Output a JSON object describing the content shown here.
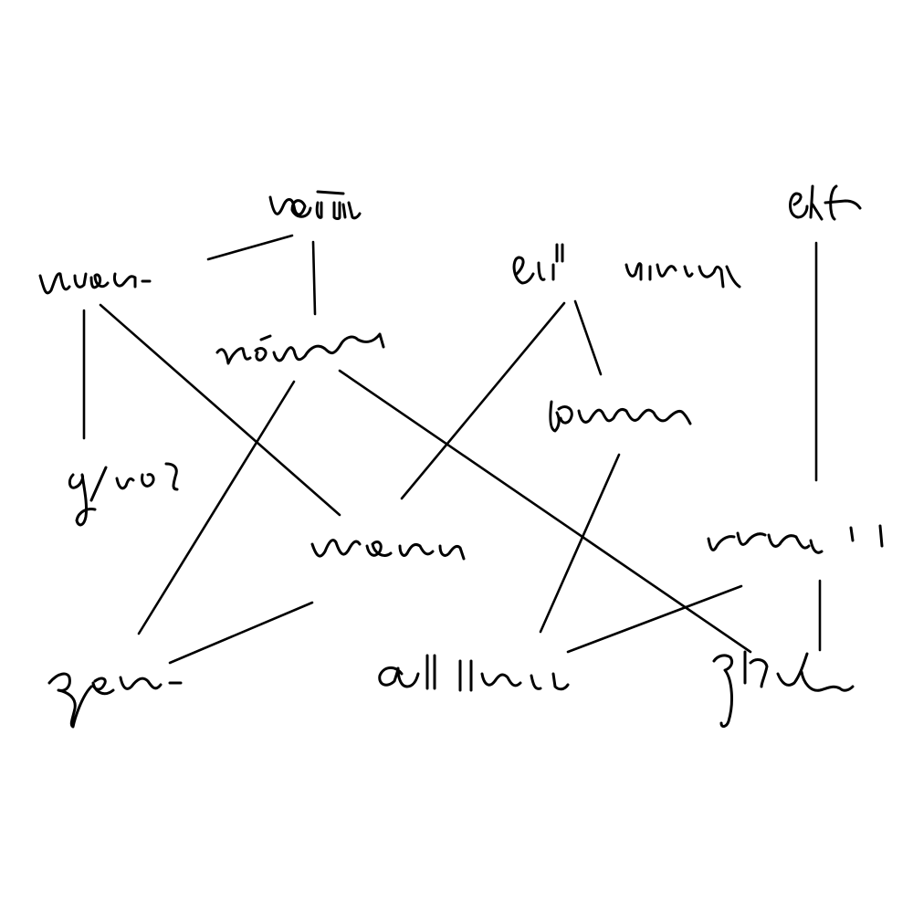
{
  "diagram": {
    "style": "handwritten graph on white canvas",
    "stroke_color": "#000000",
    "background_color": "#ffffff",
    "nodes": [
      {
        "id": "n-top-center",
        "label": ""
      },
      {
        "id": "n-top-right",
        "label": ""
      },
      {
        "id": "n-left",
        "label": ""
      },
      {
        "id": "n-center-upper",
        "label": ""
      },
      {
        "id": "n-right-upper",
        "label": ""
      },
      {
        "id": "n-left-mid",
        "label": ""
      },
      {
        "id": "n-right-mid",
        "label": ""
      },
      {
        "id": "n-center",
        "label": ""
      },
      {
        "id": "n-right",
        "label": ""
      },
      {
        "id": "n-bottom-left",
        "label": ""
      },
      {
        "id": "n-bottom-center",
        "label": ""
      },
      {
        "id": "n-bottom-right",
        "label": ""
      }
    ],
    "edges": [
      {
        "from": "n-top-center",
        "to": "n-left"
      },
      {
        "from": "n-top-center",
        "to": "n-center-upper"
      },
      {
        "from": "n-left",
        "to": "n-left-mid"
      },
      {
        "from": "n-left",
        "to": "n-center"
      },
      {
        "from": "n-center-upper",
        "to": "n-bottom-left"
      },
      {
        "from": "n-center-upper",
        "to": "n-bottom-right"
      },
      {
        "from": "n-right-upper",
        "to": "n-center"
      },
      {
        "from": "n-right-upper",
        "to": "n-right-mid"
      },
      {
        "from": "n-right-mid",
        "to": "n-bottom-center"
      },
      {
        "from": "n-top-right",
        "to": "n-right"
      },
      {
        "from": "n-center",
        "to": "n-bottom-left"
      },
      {
        "from": "n-right",
        "to": "n-bottom-center"
      },
      {
        "from": "n-right",
        "to": "n-bottom-right"
      }
    ]
  }
}
